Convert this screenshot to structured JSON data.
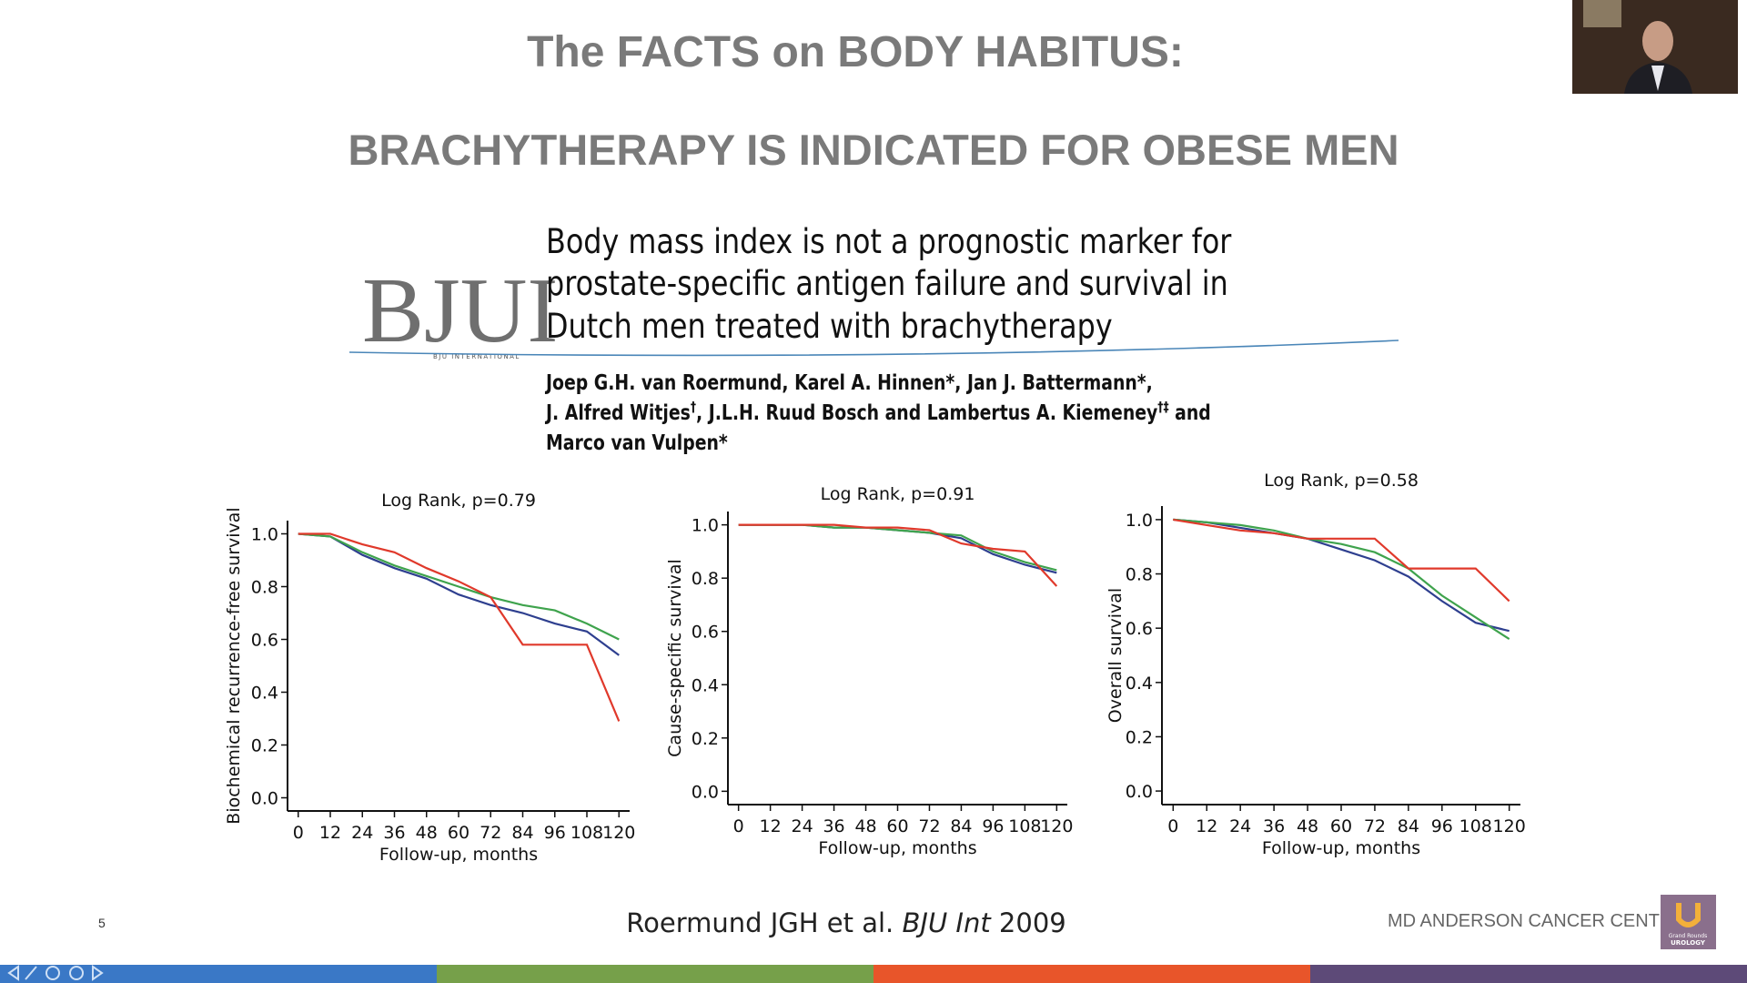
{
  "slide": {
    "title": "The FACTS on BODY HABITUS:",
    "subtitle": "BRACHYTHERAPY IS INDICATED FOR OBESE MEN",
    "journal": "BJUI",
    "journal_sub": "BJU INTERNATIONAL",
    "article_title": [
      "Body mass index is not a prognostic marker for",
      "prostate-specific antigen failure and survival in",
      "Dutch men treated with brachytherapy"
    ],
    "authors": [
      [
        "Joep G.H. van Roermund, Karel A. Hinnen*, Jan J. Battermann*,"
      ],
      [
        "J. Alfred Witjes",
        "†",
        ", J.L.H. Ruud Bosch and Lambertus A. Kiemeney",
        "†‡",
        " and"
      ],
      [
        "Marco van Vulpen*"
      ]
    ],
    "citation": [
      "Roermund JGH et al. ",
      "BJU Int",
      " 2009"
    ],
    "slide_number": "5",
    "footer": "MD ANDERSON CANCER CENTER",
    "logo": [
      "Grand Rounds",
      "UROLOGY"
    ]
  },
  "chart_data": [
    {
      "type": "line",
      "annotation": "Log Rank, p=0.79",
      "xlabel": "Follow-up, months",
      "ylabel": "Biochemical recurrence-free survival",
      "x": [
        0,
        12,
        24,
        36,
        48,
        60,
        72,
        84,
        96,
        108,
        120
      ],
      "series": [
        {
          "color": "#2e3f8f",
          "values": [
            1.0,
            0.99,
            0.92,
            0.87,
            0.83,
            0.77,
            0.73,
            0.7,
            0.66,
            0.63,
            0.54
          ]
        },
        {
          "color": "#3fa34d",
          "values": [
            1.0,
            0.99,
            0.93,
            0.88,
            0.84,
            0.8,
            0.76,
            0.73,
            0.71,
            0.66,
            0.6
          ]
        },
        {
          "color": "#e0392b",
          "values": [
            1.0,
            1.0,
            0.96,
            0.93,
            0.87,
            0.82,
            0.76,
            0.58,
            0.58,
            0.58,
            0.29
          ]
        }
      ],
      "xlim": [
        -4,
        124
      ],
      "xticks": [
        0,
        12,
        24,
        36,
        48,
        60,
        72,
        84,
        96,
        108,
        120
      ],
      "ylim": [
        -0.05,
        1.05
      ],
      "yticks": [
        {
          "value": 0,
          "label": "0.0"
        },
        {
          "value": 0.2,
          "label": "0.2"
        },
        {
          "value": 0.4,
          "label": "0.4"
        },
        {
          "value": 0.6,
          "label": "0.6"
        },
        {
          "value": 0.8,
          "label": "0.8"
        },
        {
          "value": 1,
          "label": "1.0"
        }
      ]
    },
    {
      "type": "line",
      "annotation": "Log Rank, p=0.91",
      "xlabel": "Follow-up, months",
      "ylabel": "Cause-specific survival",
      "x": [
        0,
        12,
        24,
        36,
        48,
        60,
        72,
        84,
        96,
        108,
        120
      ],
      "series": [
        {
          "color": "#2e3f8f",
          "values": [
            1.0,
            1.0,
            1.0,
            0.99,
            0.99,
            0.98,
            0.97,
            0.95,
            0.89,
            0.85,
            0.82
          ]
        },
        {
          "color": "#3fa34d",
          "values": [
            1.0,
            1.0,
            1.0,
            0.99,
            0.99,
            0.98,
            0.97,
            0.96,
            0.9,
            0.86,
            0.83
          ]
        },
        {
          "color": "#e0392b",
          "values": [
            1.0,
            1.0,
            1.0,
            1.0,
            0.99,
            0.99,
            0.98,
            0.93,
            0.91,
            0.9,
            0.77
          ]
        }
      ],
      "xlim": [
        -4,
        124
      ],
      "xticks": [
        0,
        12,
        24,
        36,
        48,
        60,
        72,
        84,
        96,
        108,
        120
      ],
      "ylim": [
        -0.05,
        1.05
      ],
      "yticks": [
        {
          "value": 0,
          "label": "0.0"
        },
        {
          "value": 0.2,
          "label": "0.2"
        },
        {
          "value": 0.4,
          "label": "0.4"
        },
        {
          "value": 0.6,
          "label": "0.6"
        },
        {
          "value": 0.8,
          "label": "0.8"
        },
        {
          "value": 1,
          "label": "1.0"
        }
      ]
    },
    {
      "type": "line",
      "annotation": "Log Rank, p=0.58",
      "xlabel": "Follow-up, months",
      "ylabel": "Overall survival",
      "x": [
        0,
        12,
        24,
        36,
        48,
        60,
        72,
        84,
        96,
        108,
        120
      ],
      "series": [
        {
          "color": "#2e3f8f",
          "values": [
            1.0,
            0.99,
            0.97,
            0.95,
            0.93,
            0.89,
            0.85,
            0.79,
            0.7,
            0.62,
            0.59
          ]
        },
        {
          "color": "#3fa34d",
          "values": [
            1.0,
            0.99,
            0.98,
            0.96,
            0.93,
            0.91,
            0.88,
            0.82,
            0.72,
            0.64,
            0.56
          ]
        },
        {
          "color": "#e0392b",
          "values": [
            1.0,
            0.98,
            0.96,
            0.95,
            0.93,
            0.93,
            0.93,
            0.82,
            0.82,
            0.82,
            0.7
          ]
        }
      ],
      "xlim": [
        -4,
        124
      ],
      "xticks": [
        0,
        12,
        24,
        36,
        48,
        60,
        72,
        84,
        96,
        108,
        120
      ],
      "ylim": [
        -0.05,
        1.05
      ],
      "yticks": [
        {
          "value": 0,
          "label": "0.0"
        },
        {
          "value": 0.2,
          "label": "0.2"
        },
        {
          "value": 0.4,
          "label": "0.4"
        },
        {
          "value": 0.6,
          "label": "0.6"
        },
        {
          "value": 0.8,
          "label": "0.8"
        },
        {
          "value": 1,
          "label": "1.0"
        }
      ]
    }
  ]
}
